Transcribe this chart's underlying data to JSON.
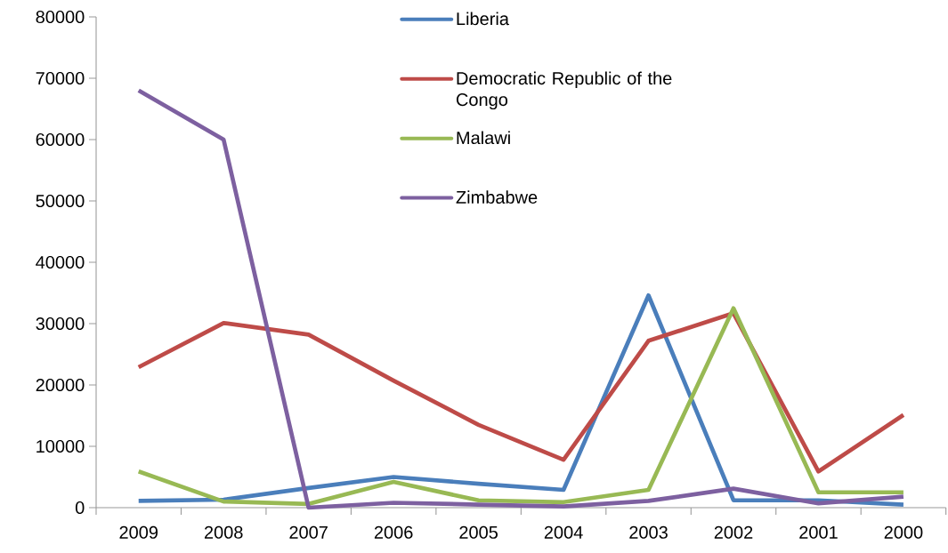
{
  "chart_data": {
    "type": "line",
    "categories": [
      "2009",
      "2008",
      "2007",
      "2006",
      "2005",
      "2004",
      "2003",
      "2002",
      "2001",
      "2000"
    ],
    "series": [
      {
        "name": "Liberia",
        "color": "#4a7ebb",
        "values": [
          1100,
          1300,
          3200,
          5000,
          3900,
          2900,
          34600,
          1200,
          1200,
          500
        ]
      },
      {
        "name": "Democratic Republic of the Congo",
        "color": "#be4b48",
        "values": [
          22900,
          30100,
          28200,
          20700,
          13500,
          7800,
          27200,
          31700,
          5900,
          15100
        ]
      },
      {
        "name": "Malawi",
        "color": "#98b954",
        "values": [
          5900,
          1000,
          600,
          4200,
          1200,
          900,
          2900,
          32500,
          2500,
          2500
        ]
      },
      {
        "name": "Zimbabwe",
        "color": "#7d60a0",
        "values": [
          68000,
          60000,
          0,
          800,
          500,
          200,
          1100,
          3100,
          700,
          1800
        ]
      }
    ],
    "ylim": [
      0,
      80000
    ],
    "yticks": [
      0,
      10000,
      20000,
      30000,
      40000,
      50000,
      60000,
      70000,
      80000
    ],
    "legend": "top",
    "grid": false,
    "marker": "none",
    "line_style": "solid"
  }
}
